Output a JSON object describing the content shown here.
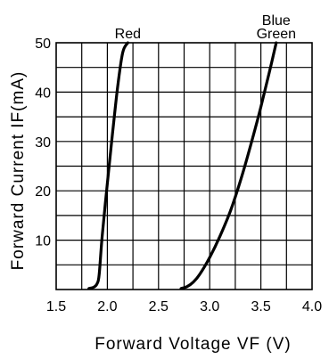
{
  "chart_data": {
    "type": "line",
    "title": "",
    "xlabel": "Forward Voltage VF (V)",
    "ylabel": "Forward Current IF(mA)",
    "xlim": [
      1.5,
      4.0
    ],
    "ylim": [
      0,
      50
    ],
    "xticks": [
      "1.5",
      "2.0",
      "2.5",
      "3.0",
      "3.5",
      "4.0"
    ],
    "yticks": [
      "10",
      "20",
      "30",
      "40",
      "50"
    ],
    "grid": true,
    "series": [
      {
        "name": "Red",
        "x": [
          1.82,
          1.87,
          1.9,
          1.92,
          1.95,
          2.0,
          2.05,
          2.1,
          2.15,
          2.2
        ],
        "y": [
          0.2,
          0.5,
          1.2,
          3,
          11,
          21.5,
          31.5,
          41,
          48,
          50
        ]
      },
      {
        "name": "Blue Green",
        "x": [
          2.72,
          2.78,
          2.84,
          2.9,
          3.0,
          3.1,
          3.2,
          3.3,
          3.4,
          3.5,
          3.58,
          3.65
        ],
        "y": [
          0.2,
          0.6,
          1.5,
          3,
          6.5,
          10.8,
          15.8,
          22,
          29.2,
          37,
          43.8,
          50
        ]
      }
    ],
    "series_labels": [
      {
        "series": "Red",
        "lines": [
          "Red"
        ]
      },
      {
        "series": "Blue Green",
        "lines": [
          "Blue",
          "Green"
        ]
      }
    ]
  }
}
